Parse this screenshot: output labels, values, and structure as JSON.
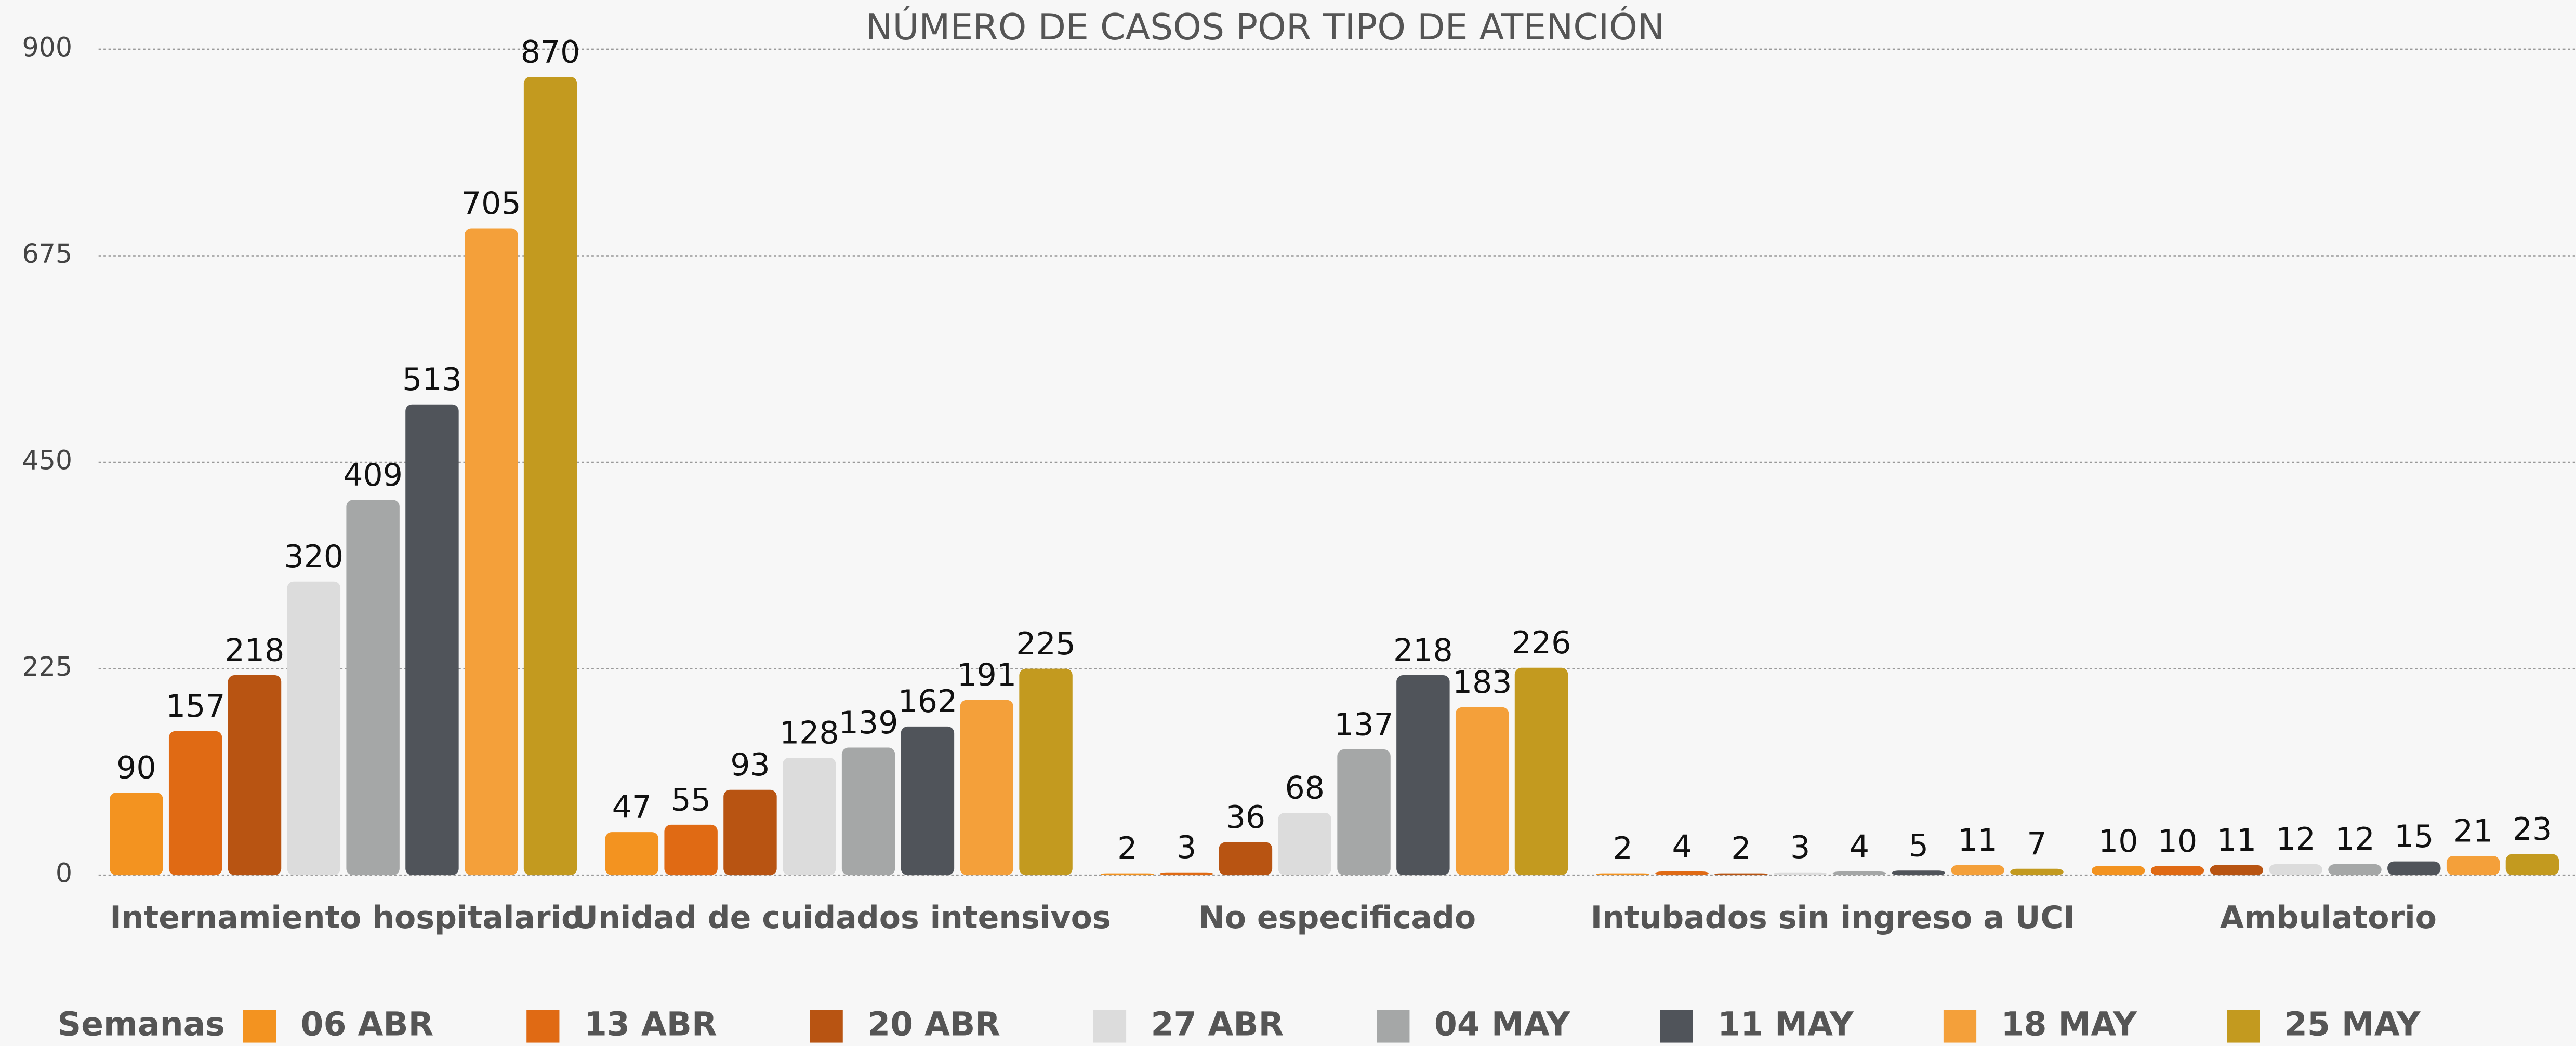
{
  "chart_data": {
    "type": "bar",
    "title": "NÚMERO DE CASOS POR TIPO DE ATENCIÓN",
    "categories": [
      "Internamiento hospitalario",
      "Unidad de cuidados intensivos",
      "No especificado",
      "Intubados sin ingreso a UCI",
      "Ambulatorio"
    ],
    "series": [
      {
        "name": "06 ABR",
        "color": "#f39320",
        "values": [
          90,
          47,
          2,
          2,
          10
        ]
      },
      {
        "name": "13 ABR",
        "color": "#e06a14",
        "values": [
          157,
          55,
          3,
          4,
          10
        ]
      },
      {
        "name": "20 ABR",
        "color": "#b85412",
        "values": [
          218,
          93,
          36,
          2,
          11
        ]
      },
      {
        "name": "27 ABR",
        "color": "#dcdcdc",
        "values": [
          320,
          128,
          68,
          3,
          12
        ]
      },
      {
        "name": "04 MAY",
        "color": "#a5a7a7",
        "values": [
          409,
          139,
          137,
          4,
          12
        ]
      },
      {
        "name": "11 MAY",
        "color": "#50545a",
        "values": [
          513,
          162,
          218,
          5,
          15
        ]
      },
      {
        "name": "18 MAY",
        "color": "#f4a03a",
        "values": [
          705,
          191,
          183,
          11,
          21
        ]
      },
      {
        "name": "25 MAY",
        "color": "#c39a1f",
        "values": [
          870,
          225,
          226,
          7,
          23
        ]
      }
    ],
    "legend_title": "Semanas",
    "ylim": [
      0,
      900
    ],
    "yticks": [
      0,
      225,
      450,
      675,
      900
    ],
    "grid": true,
    "legend": "bottom"
  }
}
